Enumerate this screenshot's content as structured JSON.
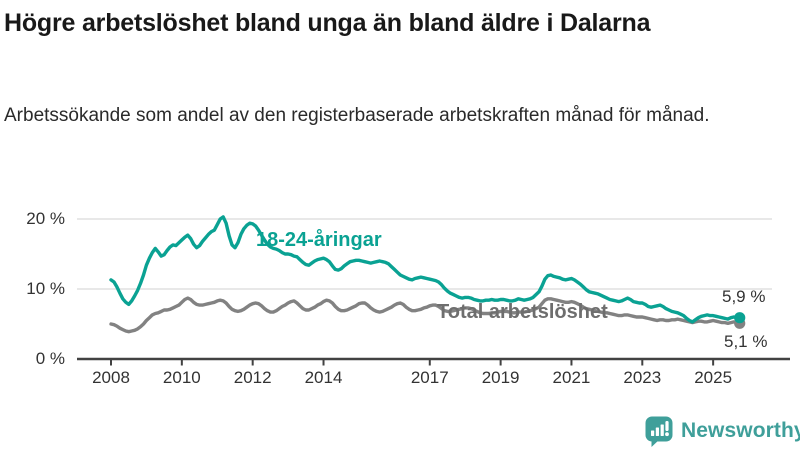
{
  "header": {
    "title": "Högre arbetslöshet bland unga än bland äldre i Dalarna",
    "subtitle": "Arbetssökande som andel av den registerbaserade arbetskraften månad för månad."
  },
  "branding": {
    "name": "Newsworthy",
    "color": "#3f9f9a",
    "icon": "bar-chart-speech-bubble-icon"
  },
  "chart_data": {
    "type": "line",
    "title": "Högre arbetslöshet bland unga än bland äldre i Dalarna",
    "subtitle": "Arbetssökande som andel av den registerbaserade arbetskraften månad för månad.",
    "region": "Dalarna",
    "x_unit": "month",
    "x_start": "2008-01",
    "x_end": "2025-10",
    "x_ticks": [
      2008,
      2010,
      2012,
      2014,
      2017,
      2019,
      2021,
      2023,
      2025
    ],
    "y_ticks": [
      {
        "value": 0,
        "label": "0 %"
      },
      {
        "value": 10,
        "label": "10 %"
      },
      {
        "value": 20,
        "label": "20 %"
      }
    ],
    "ylim": [
      0,
      21
    ],
    "grid": "horizontal",
    "legend_position": "inline-labels",
    "axis_color": "#424242",
    "grid_color": "#d9d9d9",
    "series": [
      {
        "name": "18-24-åringar",
        "color": "#0aa293",
        "label_color": "#0aa293",
        "end_label": "5,9 %",
        "last_value": 5.9,
        "values": [
          11.3,
          11.0,
          10.3,
          9.4,
          8.6,
          8.1,
          7.8,
          8.3,
          9.0,
          9.8,
          10.8,
          12.0,
          13.4,
          14.4,
          15.2,
          15.8,
          15.3,
          14.7,
          14.9,
          15.5,
          16.0,
          16.3,
          16.2,
          16.6,
          17.0,
          17.4,
          17.7,
          17.2,
          16.4,
          15.9,
          16.2,
          16.8,
          17.3,
          17.8,
          18.2,
          18.4,
          19.2,
          20.0,
          20.3,
          19.4,
          17.6,
          16.3,
          15.9,
          16.6,
          17.8,
          18.6,
          19.1,
          19.4,
          19.3,
          19.0,
          18.4,
          17.7,
          17.0,
          16.4,
          16.0,
          15.8,
          15.7,
          15.5,
          15.2,
          15.0,
          15.0,
          14.9,
          14.7,
          14.6,
          14.2,
          13.8,
          13.5,
          13.4,
          13.7,
          14.0,
          14.2,
          14.3,
          14.4,
          14.2,
          13.9,
          13.3,
          12.8,
          12.7,
          12.9,
          13.3,
          13.6,
          13.9,
          14.0,
          14.1,
          14.1,
          14.0,
          13.9,
          13.8,
          13.7,
          13.8,
          13.9,
          14.0,
          13.9,
          13.8,
          13.6,
          13.2,
          12.8,
          12.4,
          12.0,
          11.8,
          11.6,
          11.4,
          11.3,
          11.5,
          11.6,
          11.7,
          11.6,
          11.5,
          11.4,
          11.3,
          11.2,
          11.0,
          10.6,
          10.1,
          9.7,
          9.4,
          9.2,
          9.0,
          8.8,
          8.7,
          8.8,
          8.8,
          8.7,
          8.5,
          8.4,
          8.3,
          8.3,
          8.4,
          8.4,
          8.5,
          8.4,
          8.4,
          8.5,
          8.5,
          8.4,
          8.3,
          8.3,
          8.4,
          8.6,
          8.5,
          8.4,
          8.5,
          8.6,
          8.8,
          9.2,
          9.6,
          10.4,
          11.4,
          11.9,
          12.0,
          11.8,
          11.7,
          11.6,
          11.4,
          11.3,
          11.4,
          11.5,
          11.3,
          11.0,
          10.7,
          10.3,
          9.9,
          9.6,
          9.5,
          9.4,
          9.3,
          9.1,
          8.9,
          8.7,
          8.5,
          8.4,
          8.3,
          8.2,
          8.3,
          8.5,
          8.7,
          8.5,
          8.2,
          8.1,
          8.0,
          8.0,
          7.8,
          7.5,
          7.4,
          7.5,
          7.6,
          7.7,
          7.5,
          7.2,
          7.0,
          6.8,
          6.7,
          6.6,
          6.4,
          6.2,
          5.8,
          5.5,
          5.3,
          5.6,
          5.9,
          6.1,
          6.2,
          6.3,
          6.2,
          6.2,
          6.1,
          6.0,
          5.9,
          5.8,
          5.7,
          5.9,
          6.0,
          5.9,
          5.9
        ]
      },
      {
        "name": "Total arbetslöshet",
        "color": "#828282",
        "label_color": "#6e6e6e",
        "end_label": "5,1 %",
        "last_value": 5.1,
        "values": [
          5.0,
          4.9,
          4.7,
          4.4,
          4.2,
          4.0,
          3.9,
          4.0,
          4.1,
          4.3,
          4.6,
          5.0,
          5.5,
          5.9,
          6.3,
          6.5,
          6.6,
          6.8,
          7.0,
          7.0,
          7.1,
          7.3,
          7.5,
          7.7,
          8.1,
          8.5,
          8.7,
          8.5,
          8.1,
          7.8,
          7.7,
          7.7,
          7.8,
          7.9,
          8.0,
          8.1,
          8.3,
          8.4,
          8.3,
          8.0,
          7.5,
          7.1,
          6.9,
          6.8,
          6.9,
          7.1,
          7.4,
          7.7,
          7.9,
          8.0,
          7.9,
          7.6,
          7.2,
          6.9,
          6.7,
          6.7,
          6.9,
          7.2,
          7.5,
          7.7,
          8.0,
          8.2,
          8.3,
          8.0,
          7.6,
          7.2,
          7.0,
          7.0,
          7.2,
          7.4,
          7.7,
          7.9,
          8.2,
          8.4,
          8.3,
          8.0,
          7.5,
          7.1,
          6.9,
          6.9,
          7.0,
          7.2,
          7.4,
          7.6,
          7.9,
          8.0,
          8.0,
          7.7,
          7.3,
          7.0,
          6.8,
          6.7,
          6.8,
          7.0,
          7.2,
          7.4,
          7.7,
          7.9,
          8.0,
          7.8,
          7.4,
          7.1,
          6.9,
          6.9,
          7.0,
          7.1,
          7.3,
          7.4,
          7.6,
          7.7,
          7.7,
          7.5,
          7.2,
          6.9,
          6.8,
          6.8,
          6.9,
          7.0,
          7.1,
          7.2,
          7.3,
          7.3,
          7.2,
          7.0,
          6.8,
          6.6,
          6.5,
          6.5,
          6.5,
          6.6,
          6.6,
          6.7,
          6.8,
          6.8,
          6.8,
          6.7,
          6.6,
          6.6,
          6.7,
          6.7,
          6.7,
          6.8,
          6.9,
          7.0,
          7.2,
          7.4,
          7.9,
          8.4,
          8.6,
          8.6,
          8.5,
          8.4,
          8.3,
          8.2,
          8.1,
          8.1,
          8.2,
          8.1,
          7.9,
          7.7,
          7.4,
          7.2,
          7.1,
          7.0,
          6.9,
          6.8,
          6.7,
          6.6,
          6.6,
          6.5,
          6.4,
          6.3,
          6.2,
          6.2,
          6.3,
          6.3,
          6.2,
          6.1,
          6.0,
          6.0,
          6.0,
          5.9,
          5.8,
          5.7,
          5.6,
          5.5,
          5.6,
          5.6,
          5.5,
          5.5,
          5.6,
          5.6,
          5.7,
          5.6,
          5.5,
          5.4,
          5.3,
          5.2,
          5.3,
          5.4,
          5.4,
          5.3,
          5.3,
          5.4,
          5.5,
          5.4,
          5.3,
          5.2,
          5.2,
          5.1,
          5.2,
          5.3,
          5.2,
          5.1
        ]
      }
    ]
  }
}
